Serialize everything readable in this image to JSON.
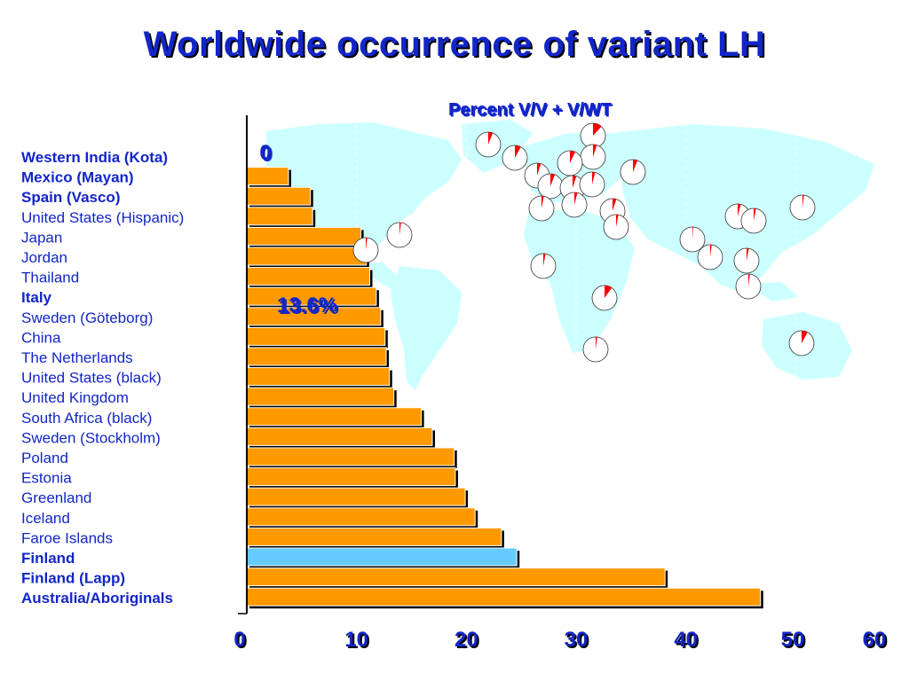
{
  "title": "Worldwide occurrence of variant LH",
  "chart_data": {
    "type": "bar",
    "orientation": "horizontal",
    "title": "Worldwide occurrence of variant LH",
    "categories": [
      "Western India (Kota)",
      "Mexico (Mayan)",
      "Spain (Vasco)",
      "United States (Hispanic)",
      "Japan",
      "Jordan",
      "Thailand",
      "Italy",
      "Sweden (Göteborg)",
      "China",
      "The Netherlands",
      "United States (black)",
      "United Kingdom",
      "South Africa (black)",
      "Sweden (Stockholm)",
      "Poland",
      "Estonia",
      "Greenland",
      "Iceland",
      "Faroe Islands",
      "Finland",
      "Finland (Lapp)",
      "Australia/Aboriginals"
    ],
    "bold_categories": [
      "Western India (Kota)",
      "Mexico (Mayan)",
      "Spain (Vasco)",
      "Italy",
      "Finland",
      "Finland (Lapp)",
      "Australia/Aboriginals"
    ],
    "values": [
      0,
      3.8,
      5.8,
      6.0,
      10.4,
      10.9,
      11.2,
      11.8,
      12.2,
      12.6,
      12.7,
      13.0,
      13.4,
      15.9,
      16.9,
      18.9,
      19.0,
      19.9,
      20.8,
      23.2,
      24.6,
      38.1,
      46.8
    ],
    "highlight_category": "Finland",
    "colors": {
      "bar": "#ff9900",
      "highlight": "#66ccff",
      "text": "#1226c8",
      "shadow": "#000000",
      "map": "#ccffff",
      "pie_fill": "#ff0000"
    },
    "xlim": [
      0,
      60
    ],
    "xticks": [
      0,
      10,
      20,
      30,
      40,
      50,
      60
    ],
    "grid": "vertical dashed",
    "xlabel": "",
    "ylabel": "",
    "annotations": [
      "0",
      "13.6%"
    ],
    "pie_header": "Percent V/V + V/WT"
  }
}
